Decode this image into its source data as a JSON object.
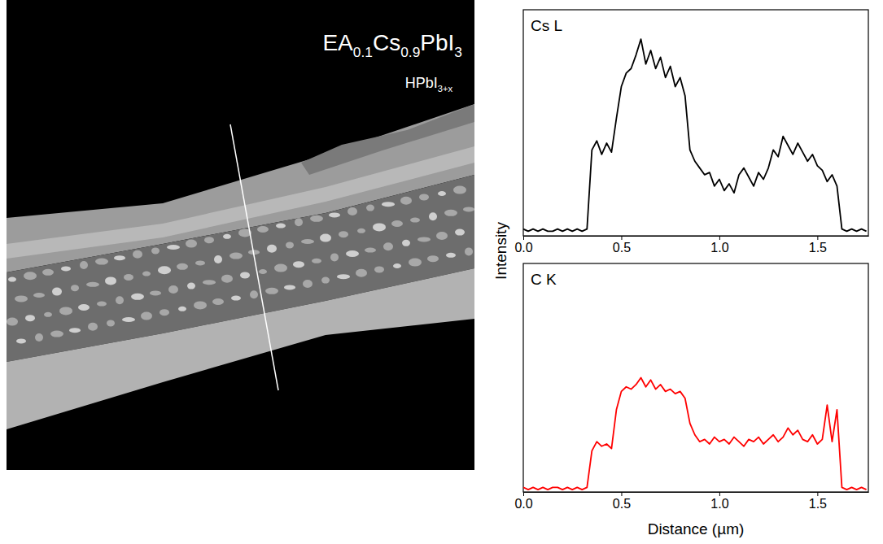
{
  "image": {
    "title": [
      {
        "text": "EA"
      },
      {
        "text": "0.1",
        "sub": true
      },
      {
        "text": "Cs"
      },
      {
        "text": "0.9",
        "sub": true
      },
      {
        "text": "PbI"
      },
      {
        "text": "3",
        "sub": true
      }
    ],
    "subtitle": [
      {
        "text": "HPbI"
      },
      {
        "text": "3+x",
        "sub": true
      }
    ]
  },
  "chart_data": [
    {
      "type": "line",
      "title": "Cs L",
      "color": "#000000",
      "ylabel": "Intensity",
      "xlim": [
        0,
        1.76
      ],
      "ylim": [
        0,
        1
      ],
      "xticks": [
        {
          "value": 0,
          "label": "0.0"
        },
        0.5,
        {
          "value": 1,
          "label": "1.0"
        },
        1.5
      ],
      "tick_labels": "x",
      "x": [
        0,
        0.025,
        0.05,
        0.075,
        0.1,
        0.125,
        0.15,
        0.175,
        0.2,
        0.225,
        0.25,
        0.275,
        0.3,
        0.325,
        0.35,
        0.375,
        0.4,
        0.425,
        0.45,
        0.475,
        0.5,
        0.525,
        0.55,
        0.575,
        0.6,
        0.625,
        0.65,
        0.675,
        0.7,
        0.725,
        0.75,
        0.775,
        0.8,
        0.825,
        0.85,
        0.875,
        0.9,
        0.925,
        0.95,
        0.975,
        1,
        1.025,
        1.05,
        1.075,
        1.1,
        1.125,
        1.15,
        1.175,
        1.2,
        1.225,
        1.25,
        1.275,
        1.3,
        1.325,
        1.35,
        1.375,
        1.4,
        1.425,
        1.45,
        1.475,
        1.5,
        1.525,
        1.55,
        1.575,
        1.6,
        1.625,
        1.65,
        1.675,
        1.7,
        1.725,
        1.75
      ],
      "values": [
        0.03,
        0.02,
        0.03,
        0.02,
        0.03,
        0.02,
        0.02,
        0.03,
        0.02,
        0.03,
        0.02,
        0.03,
        0.02,
        0.03,
        0.38,
        0.42,
        0.36,
        0.41,
        0.37,
        0.52,
        0.66,
        0.72,
        0.74,
        0.8,
        0.87,
        0.76,
        0.82,
        0.74,
        0.79,
        0.7,
        0.75,
        0.66,
        0.7,
        0.62,
        0.38,
        0.33,
        0.3,
        0.27,
        0.28,
        0.22,
        0.25,
        0.2,
        0.23,
        0.19,
        0.27,
        0.3,
        0.26,
        0.22,
        0.28,
        0.25,
        0.3,
        0.38,
        0.35,
        0.44,
        0.4,
        0.36,
        0.41,
        0.37,
        0.33,
        0.36,
        0.31,
        0.29,
        0.24,
        0.27,
        0.22,
        0.03,
        0.02,
        0.03,
        0.02,
        0.03,
        0.02
      ]
    },
    {
      "type": "line",
      "title": "C K",
      "color": "#ff0000",
      "xlabel": "Distance (µm)",
      "xlim": [
        0,
        1.76
      ],
      "ylim": [
        0,
        1
      ],
      "xticks": [
        {
          "value": 0,
          "label": "0.0"
        },
        0.5,
        {
          "value": 1,
          "label": "1.0"
        },
        1.5
      ],
      "tick_labels": "x",
      "x": [
        0,
        0.025,
        0.05,
        0.075,
        0.1,
        0.125,
        0.15,
        0.175,
        0.2,
        0.225,
        0.25,
        0.275,
        0.3,
        0.325,
        0.35,
        0.375,
        0.4,
        0.425,
        0.45,
        0.475,
        0.5,
        0.525,
        0.55,
        0.575,
        0.6,
        0.625,
        0.65,
        0.675,
        0.7,
        0.725,
        0.75,
        0.775,
        0.8,
        0.825,
        0.85,
        0.875,
        0.9,
        0.925,
        0.95,
        0.975,
        1,
        1.025,
        1.05,
        1.075,
        1.1,
        1.125,
        1.15,
        1.175,
        1.2,
        1.225,
        1.25,
        1.275,
        1.3,
        1.325,
        1.35,
        1.375,
        1.4,
        1.425,
        1.45,
        1.475,
        1.5,
        1.525,
        1.55,
        1.575,
        1.6,
        1.625,
        1.65,
        1.675,
        1.7,
        1.725,
        1.75
      ],
      "values": [
        0.02,
        0.01,
        0.02,
        0.01,
        0.02,
        0.01,
        0.02,
        0.02,
        0.01,
        0.02,
        0.01,
        0.02,
        0.01,
        0.02,
        0.18,
        0.22,
        0.2,
        0.21,
        0.19,
        0.36,
        0.44,
        0.46,
        0.45,
        0.47,
        0.5,
        0.46,
        0.49,
        0.45,
        0.47,
        0.44,
        0.45,
        0.43,
        0.44,
        0.41,
        0.3,
        0.25,
        0.22,
        0.23,
        0.21,
        0.24,
        0.22,
        0.23,
        0.21,
        0.24,
        0.22,
        0.2,
        0.23,
        0.22,
        0.24,
        0.21,
        0.23,
        0.25,
        0.22,
        0.24,
        0.28,
        0.25,
        0.27,
        0.23,
        0.22,
        0.25,
        0.21,
        0.23,
        0.38,
        0.22,
        0.36,
        0.02,
        0.01,
        0.02,
        0.01,
        0.02,
        0.01
      ]
    }
  ]
}
